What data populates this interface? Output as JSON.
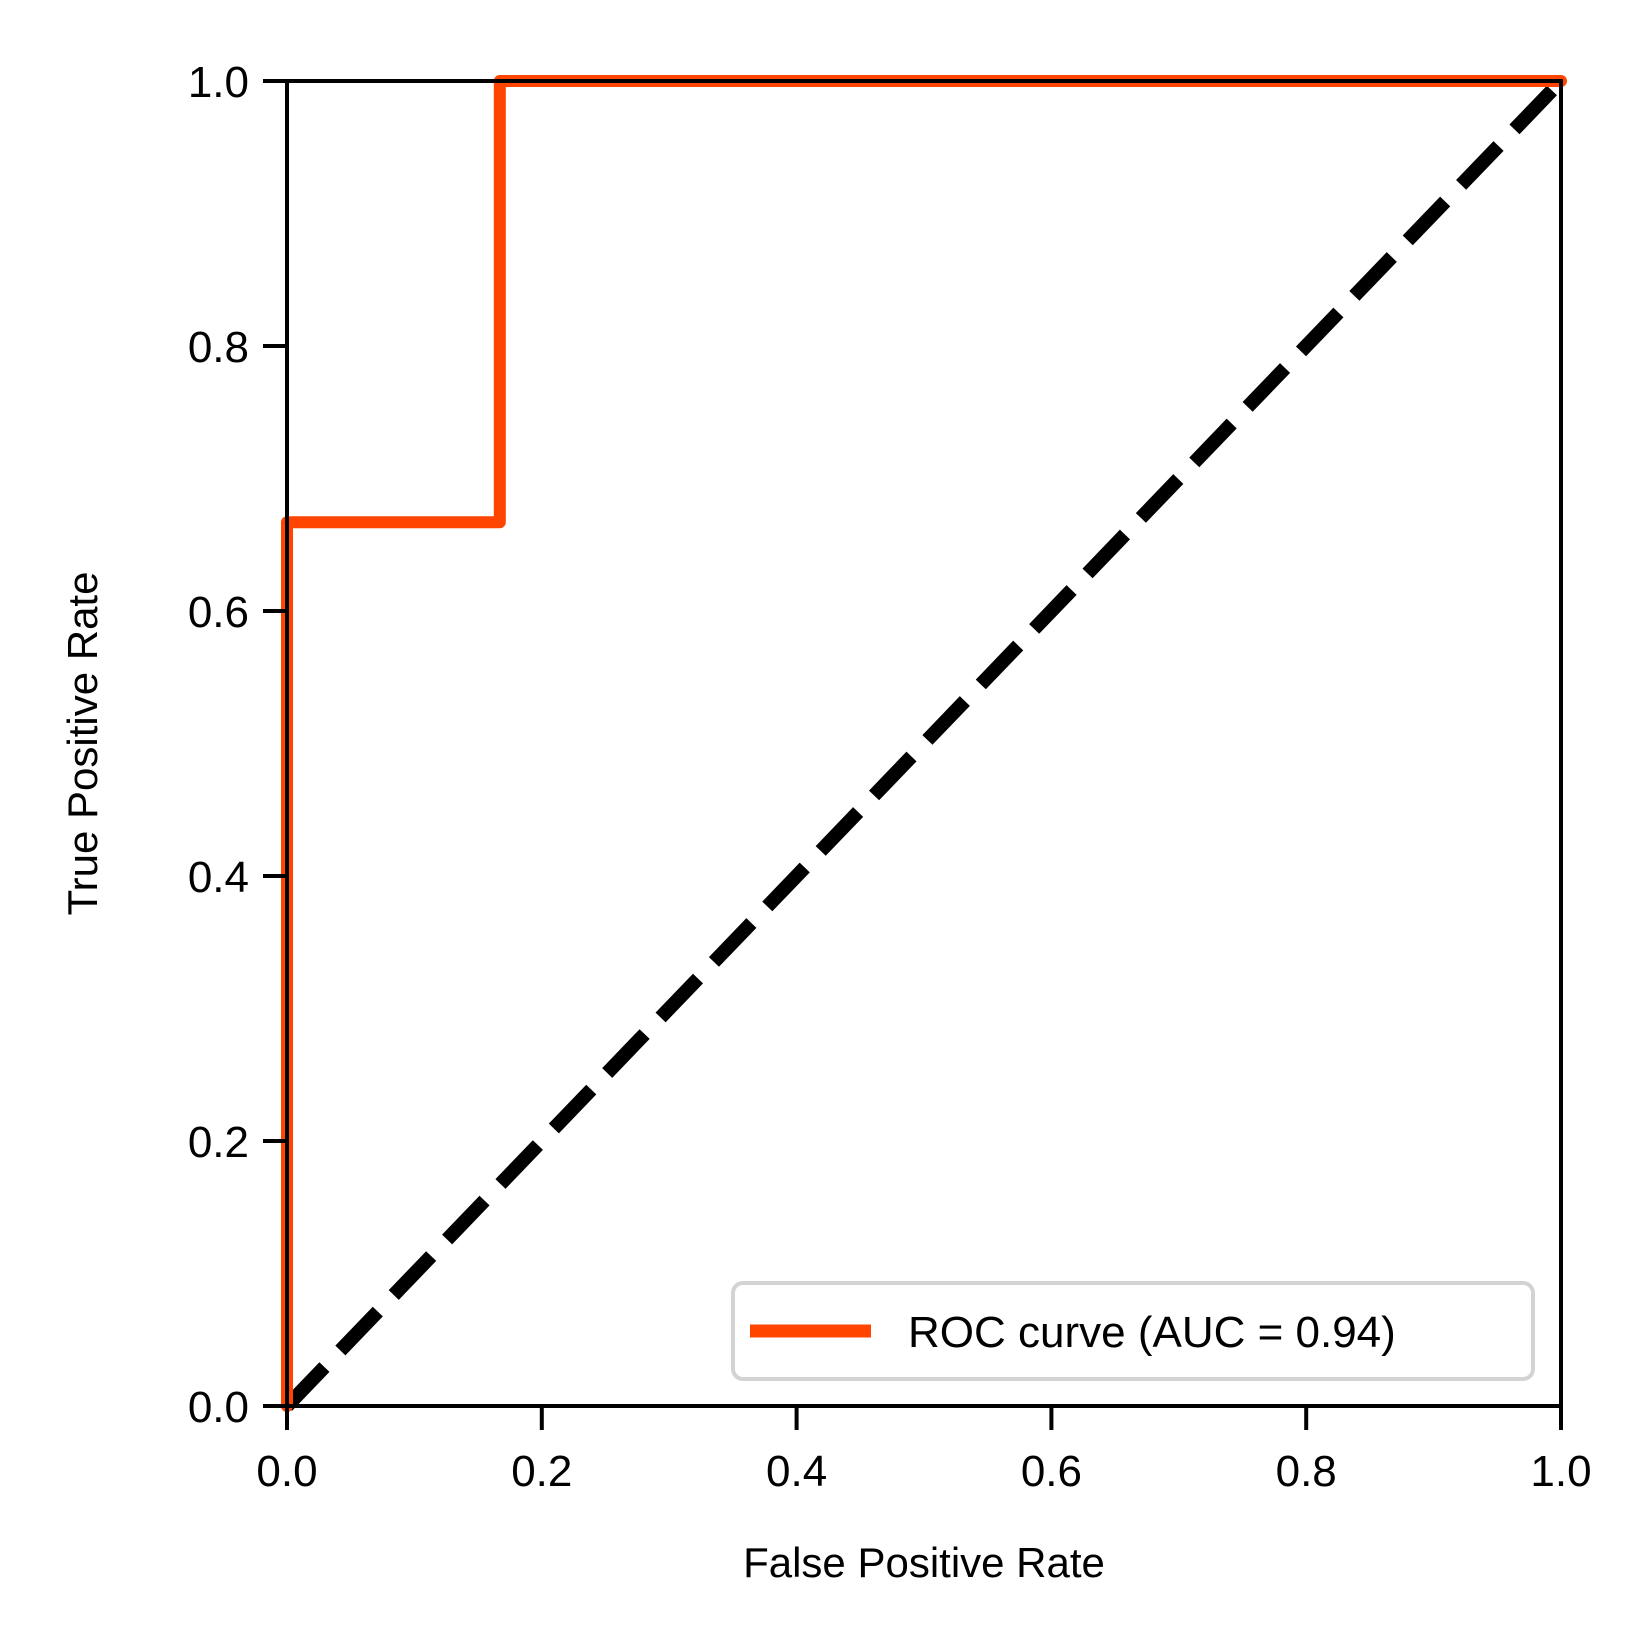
{
  "chart_data": {
    "type": "line",
    "title": "",
    "xlabel": "False Positive Rate",
    "ylabel": "True Positive Rate",
    "xlim": [
      0.0,
      1.0
    ],
    "ylim": [
      0.0,
      1.0
    ],
    "xticks": [
      "0.0",
      "0.2",
      "0.4",
      "0.6",
      "0.8",
      "1.0"
    ],
    "yticks": [
      "0.0",
      "0.2",
      "0.4",
      "0.6",
      "0.8",
      "1.0"
    ],
    "grid": false,
    "legend_position": "lower-right",
    "series": [
      {
        "name": "ROC curve (AUC = 0.94)",
        "color": "#ff4500",
        "style": "solid",
        "x": [
          0.0,
          0.0,
          0.167,
          0.167,
          1.0
        ],
        "y": [
          0.0,
          0.667,
          0.667,
          1.0,
          1.0
        ]
      },
      {
        "color": "#000000",
        "style": "dashed",
        "x": [
          0.0,
          1.0
        ],
        "y": [
          0.0,
          1.0
        ]
      }
    ]
  }
}
